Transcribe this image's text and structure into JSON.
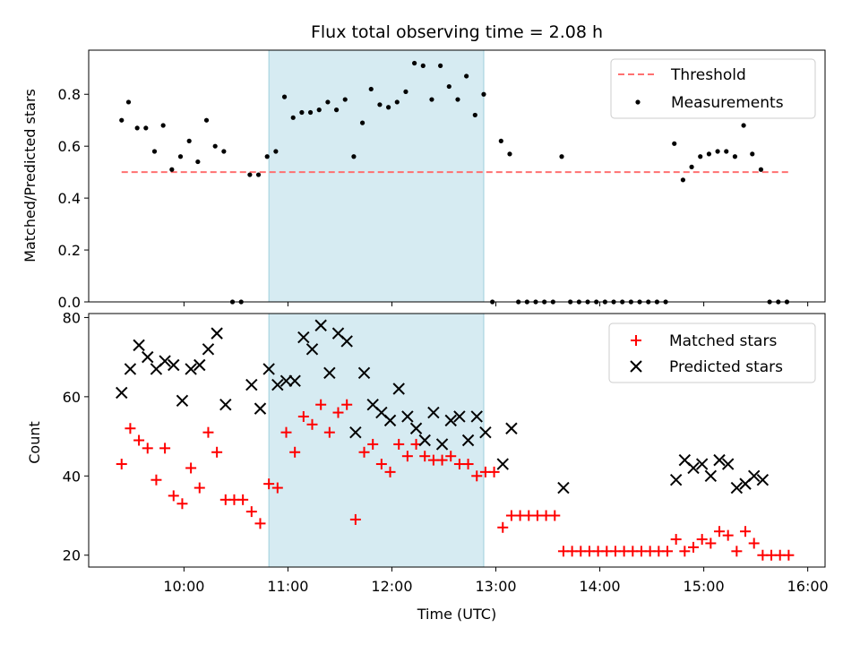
{
  "chart_data": [
    {
      "type": "scatter",
      "title": "Flux total observing time = 2.08 h",
      "xlabel": "",
      "ylabel": "Matched/Predicted stars",
      "xlim": [
        "09:05",
        "16:10"
      ],
      "ylim": [
        0,
        0.97
      ],
      "yticks": [
        0.0,
        0.2,
        0.4,
        0.6,
        0.8
      ],
      "ytick_labels": [
        "0.0",
        "0.2",
        "0.4",
        "0.6",
        "0.8"
      ],
      "shaded_span": {
        "from": "10:49",
        "to": "12:53",
        "color": "#add8e6"
      },
      "legend": {
        "position": "top-right",
        "entries": [
          "Threshold",
          "Measurements"
        ]
      },
      "threshold": {
        "name": "Threshold",
        "y": 0.5,
        "from": "09:24",
        "to": "15:49",
        "color": "#ff7070",
        "style": "dashed"
      },
      "series": [
        {
          "name": "Measurements",
          "marker": "dot",
          "color": "#000000",
          "points": [
            [
              "09:24",
              0.7
            ],
            [
              "09:28",
              0.77
            ],
            [
              "09:33",
              0.67
            ],
            [
              "09:38",
              0.67
            ],
            [
              "09:43",
              0.58
            ],
            [
              "09:48",
              0.68
            ],
            [
              "09:53",
              0.51
            ],
            [
              "09:58",
              0.56
            ],
            [
              "10:03",
              0.62
            ],
            [
              "10:08",
              0.54
            ],
            [
              "10:13",
              0.7
            ],
            [
              "10:18",
              0.6
            ],
            [
              "10:23",
              0.58
            ],
            [
              "10:28",
              0.0
            ],
            [
              "10:33",
              0.0
            ],
            [
              "10:38",
              0.49
            ],
            [
              "10:43",
              0.49
            ],
            [
              "10:48",
              0.56
            ],
            [
              "10:53",
              0.58
            ],
            [
              "10:58",
              0.79
            ],
            [
              "11:03",
              0.71
            ],
            [
              "11:08",
              0.73
            ],
            [
              "11:13",
              0.73
            ],
            [
              "11:18",
              0.74
            ],
            [
              "11:23",
              0.77
            ],
            [
              "11:28",
              0.74
            ],
            [
              "11:33",
              0.78
            ],
            [
              "11:38",
              0.56
            ],
            [
              "11:43",
              0.69
            ],
            [
              "11:48",
              0.82
            ],
            [
              "11:53",
              0.76
            ],
            [
              "11:58",
              0.75
            ],
            [
              "12:03",
              0.77
            ],
            [
              "12:08",
              0.81
            ],
            [
              "12:13",
              0.92
            ],
            [
              "12:18",
              0.91
            ],
            [
              "12:23",
              0.78
            ],
            [
              "12:28",
              0.91
            ],
            [
              "12:33",
              0.83
            ],
            [
              "12:38",
              0.78
            ],
            [
              "12:43",
              0.87
            ],
            [
              "12:48",
              0.72
            ],
            [
              "12:53",
              0.8
            ],
            [
              "12:58",
              0.0
            ],
            [
              "13:03",
              0.62
            ],
            [
              "13:08",
              0.57
            ],
            [
              "13:13",
              0.0
            ],
            [
              "13:18",
              0.0
            ],
            [
              "13:23",
              0.0
            ],
            [
              "13:28",
              0.0
            ],
            [
              "13:33",
              0.0
            ],
            [
              "13:38",
              0.56
            ],
            [
              "13:43",
              0.0
            ],
            [
              "13:48",
              0.0
            ],
            [
              "13:53",
              0.0
            ],
            [
              "13:58",
              0.0
            ],
            [
              "14:03",
              0.0
            ],
            [
              "14:08",
              0.0
            ],
            [
              "14:13",
              0.0
            ],
            [
              "14:18",
              0.0
            ],
            [
              "14:23",
              0.0
            ],
            [
              "14:28",
              0.0
            ],
            [
              "14:33",
              0.0
            ],
            [
              "14:38",
              0.0
            ],
            [
              "14:43",
              0.61
            ],
            [
              "14:48",
              0.47
            ],
            [
              "14:53",
              0.52
            ],
            [
              "14:58",
              0.56
            ],
            [
              "15:03",
              0.57
            ],
            [
              "15:08",
              0.58
            ],
            [
              "15:13",
              0.58
            ],
            [
              "15:18",
              0.56
            ],
            [
              "15:23",
              0.68
            ],
            [
              "15:28",
              0.57
            ],
            [
              "15:33",
              0.51
            ],
            [
              "15:38",
              0.0
            ],
            [
              "15:43",
              0.0
            ],
            [
              "15:48",
              0.0
            ]
          ]
        }
      ]
    },
    {
      "type": "scatter",
      "title": "",
      "xlabel": "Time (UTC)",
      "ylabel": "Count",
      "xlim": [
        "09:05",
        "16:10"
      ],
      "ylim": [
        17,
        81
      ],
      "yticks": [
        20,
        40,
        60,
        80
      ],
      "ytick_labels": [
        "20",
        "40",
        "60",
        "80"
      ],
      "xticks": [
        "10:00",
        "11:00",
        "12:00",
        "13:00",
        "14:00",
        "15:00",
        "16:00"
      ],
      "xtick_labels": [
        "10:00",
        "11:00",
        "12:00",
        "13:00",
        "14:00",
        "15:00",
        "16:00"
      ],
      "shaded_span": {
        "from": "10:49",
        "to": "12:53",
        "color": "#add8e6"
      },
      "legend": {
        "position": "top-right",
        "entries": [
          "Matched stars",
          "Predicted stars"
        ]
      },
      "series": [
        {
          "name": "Matched stars",
          "marker": "plus",
          "color": "#ff0000",
          "points": [
            [
              "09:24",
              43
            ],
            [
              "09:29",
              52
            ],
            [
              "09:34",
              49
            ],
            [
              "09:39",
              47
            ],
            [
              "09:44",
              39
            ],
            [
              "09:49",
              47
            ],
            [
              "09:54",
              35
            ],
            [
              "09:59",
              33
            ],
            [
              "10:04",
              42
            ],
            [
              "10:09",
              37
            ],
            [
              "10:14",
              51
            ],
            [
              "10:19",
              46
            ],
            [
              "10:24",
              34
            ],
            [
              "10:29",
              34
            ],
            [
              "10:34",
              34
            ],
            [
              "10:39",
              31
            ],
            [
              "10:44",
              28
            ],
            [
              "10:49",
              38
            ],
            [
              "10:54",
              37
            ],
            [
              "10:59",
              51
            ],
            [
              "11:04",
              46
            ],
            [
              "11:09",
              55
            ],
            [
              "11:14",
              53
            ],
            [
              "11:19",
              58
            ],
            [
              "11:24",
              51
            ],
            [
              "11:29",
              56
            ],
            [
              "11:34",
              58
            ],
            [
              "11:39",
              29
            ],
            [
              "11:44",
              46
            ],
            [
              "11:49",
              48
            ],
            [
              "11:54",
              43
            ],
            [
              "11:59",
              41
            ],
            [
              "12:04",
              48
            ],
            [
              "12:09",
              45
            ],
            [
              "12:14",
              48
            ],
            [
              "12:19",
              45
            ],
            [
              "12:24",
              44
            ],
            [
              "12:29",
              44
            ],
            [
              "12:34",
              45
            ],
            [
              "12:39",
              43
            ],
            [
              "12:44",
              43
            ],
            [
              "12:49",
              40
            ],
            [
              "12:54",
              41
            ],
            [
              "12:59",
              41
            ],
            [
              "13:04",
              27
            ],
            [
              "13:09",
              30
            ],
            [
              "13:14",
              30
            ],
            [
              "13:19",
              30
            ],
            [
              "13:24",
              30
            ],
            [
              "13:29",
              30
            ],
            [
              "13:34",
              30
            ],
            [
              "13:39",
              21
            ],
            [
              "13:44",
              21
            ],
            [
              "13:49",
              21
            ],
            [
              "13:54",
              21
            ],
            [
              "13:59",
              21
            ],
            [
              "14:04",
              21
            ],
            [
              "14:09",
              21
            ],
            [
              "14:14",
              21
            ],
            [
              "14:19",
              21
            ],
            [
              "14:24",
              21
            ],
            [
              "14:29",
              21
            ],
            [
              "14:34",
              21
            ],
            [
              "14:39",
              21
            ],
            [
              "14:44",
              24
            ],
            [
              "14:49",
              21
            ],
            [
              "14:54",
              22
            ],
            [
              "14:59",
              24
            ],
            [
              "15:04",
              23
            ],
            [
              "15:09",
              26
            ],
            [
              "15:14",
              25
            ],
            [
              "15:19",
              21
            ],
            [
              "15:24",
              26
            ],
            [
              "15:29",
              23
            ],
            [
              "15:34",
              20
            ],
            [
              "15:39",
              20
            ],
            [
              "15:44",
              20
            ],
            [
              "15:49",
              20
            ]
          ]
        },
        {
          "name": "Predicted stars",
          "marker": "x",
          "color": "#000000",
          "points": [
            [
              "09:24",
              61
            ],
            [
              "09:29",
              67
            ],
            [
              "09:34",
              73
            ],
            [
              "09:39",
              70
            ],
            [
              "09:44",
              67
            ],
            [
              "09:49",
              69
            ],
            [
              "09:54",
              68
            ],
            [
              "09:59",
              59
            ],
            [
              "10:04",
              67
            ],
            [
              "10:09",
              68
            ],
            [
              "10:14",
              72
            ],
            [
              "10:19",
              76
            ],
            [
              "10:24",
              58
            ],
            [
              "10:39",
              63
            ],
            [
              "10:44",
              57
            ],
            [
              "10:49",
              67
            ],
            [
              "10:54",
              63
            ],
            [
              "10:59",
              64
            ],
            [
              "11:04",
              64
            ],
            [
              "11:09",
              75
            ],
            [
              "11:14",
              72
            ],
            [
              "11:19",
              78
            ],
            [
              "11:24",
              66
            ],
            [
              "11:29",
              76
            ],
            [
              "11:34",
              74
            ],
            [
              "11:39",
              51
            ],
            [
              "11:44",
              66
            ],
            [
              "11:49",
              58
            ],
            [
              "11:54",
              56
            ],
            [
              "11:59",
              54
            ],
            [
              "12:04",
              62
            ],
            [
              "12:09",
              55
            ],
            [
              "12:14",
              52
            ],
            [
              "12:19",
              49
            ],
            [
              "12:24",
              56
            ],
            [
              "12:29",
              48
            ],
            [
              "12:34",
              54
            ],
            [
              "12:39",
              55
            ],
            [
              "12:44",
              49
            ],
            [
              "12:49",
              55
            ],
            [
              "12:54",
              51
            ],
            [
              "13:04",
              43
            ],
            [
              "13:09",
              52
            ],
            [
              "13:39",
              37
            ],
            [
              "14:44",
              39
            ],
            [
              "14:49",
              44
            ],
            [
              "14:54",
              42
            ],
            [
              "14:59",
              43
            ],
            [
              "15:04",
              40
            ],
            [
              "15:09",
              44
            ],
            [
              "15:14",
              43
            ],
            [
              "15:19",
              37
            ],
            [
              "15:24",
              38
            ],
            [
              "15:29",
              40
            ],
            [
              "15:34",
              39
            ]
          ]
        }
      ]
    }
  ]
}
